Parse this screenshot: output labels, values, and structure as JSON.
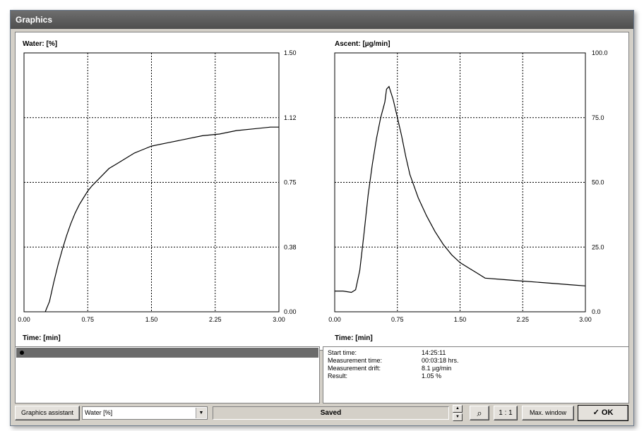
{
  "window": {
    "title": "Graphics"
  },
  "chart_data": [
    {
      "type": "line",
      "title": "Water: [%]",
      "xlabel": "Time: [min]",
      "ylabel": "",
      "xlim": [
        0,
        3.0
      ],
      "ylim": [
        0,
        1.5
      ],
      "x_ticks": [
        "0.00",
        "0.75",
        "1.50",
        "2.25",
        "3.00"
      ],
      "y_ticks": [
        "0.00",
        "0.38",
        "0.75",
        "1.12",
        "1.50"
      ],
      "grid": true,
      "series": [
        {
          "x": [
            0.25,
            0.3,
            0.35,
            0.4,
            0.45,
            0.5,
            0.55,
            0.6,
            0.65,
            0.7,
            0.75,
            0.8,
            0.9,
            1.0,
            1.1,
            1.2,
            1.3,
            1.4,
            1.5,
            1.7,
            1.9,
            2.1,
            2.3,
            2.5,
            2.7,
            2.9,
            3.0
          ],
          "y": [
            0.0,
            0.06,
            0.17,
            0.27,
            0.36,
            0.44,
            0.51,
            0.57,
            0.62,
            0.66,
            0.7,
            0.73,
            0.78,
            0.83,
            0.86,
            0.89,
            0.92,
            0.94,
            0.96,
            0.98,
            1.0,
            1.02,
            1.03,
            1.05,
            1.06,
            1.07,
            1.07
          ]
        }
      ]
    },
    {
      "type": "line",
      "title": "Ascent: [µg/min]",
      "xlabel": "Time: [min]",
      "ylabel": "",
      "xlim": [
        0,
        3.0
      ],
      "ylim": [
        0,
        100
      ],
      "x_ticks": [
        "0.00",
        "0.75",
        "1.50",
        "2.25",
        "3.00"
      ],
      "y_ticks": [
        "0.0",
        "25.0",
        "50.0",
        "75.0",
        "100.0"
      ],
      "grid": true,
      "series": [
        {
          "x": [
            0.0,
            0.1,
            0.2,
            0.25,
            0.3,
            0.35,
            0.4,
            0.45,
            0.5,
            0.55,
            0.6,
            0.62,
            0.65,
            0.7,
            0.75,
            0.8,
            0.85,
            0.9,
            1.0,
            1.1,
            1.2,
            1.3,
            1.4,
            1.5,
            1.6,
            1.7,
            1.8,
            2.0,
            2.2,
            2.4,
            2.6,
            2.8,
            3.0
          ],
          "y": [
            8,
            8,
            7.5,
            8.5,
            16,
            30,
            45,
            57,
            67,
            75,
            81,
            86,
            87,
            82,
            75,
            68,
            60,
            53,
            44,
            37,
            31,
            26,
            22,
            19,
            17,
            15,
            13,
            12.5,
            12,
            11.5,
            11,
            10.5,
            10
          ]
        }
      ]
    }
  ],
  "info": [
    {
      "key": "Start time:",
      "value": "14:25:11"
    },
    {
      "key": "Measurement time:",
      "value": "00:03:18 hrs."
    },
    {
      "key": "Measurement drift:",
      "value": "8.1 µg/min"
    },
    {
      "key": "Result:",
      "value": "1.05 %"
    }
  ],
  "toolbar": {
    "assistant_label": "Graphics assistant",
    "combo_value": "Water [%]",
    "status": "Saved",
    "spin_up": "▲",
    "spin_down": "▼",
    "zoom_label": "⌕",
    "ratio_label": "1 : 1",
    "maxwin_label": "Max. window",
    "ok_label": "✓ OK"
  }
}
